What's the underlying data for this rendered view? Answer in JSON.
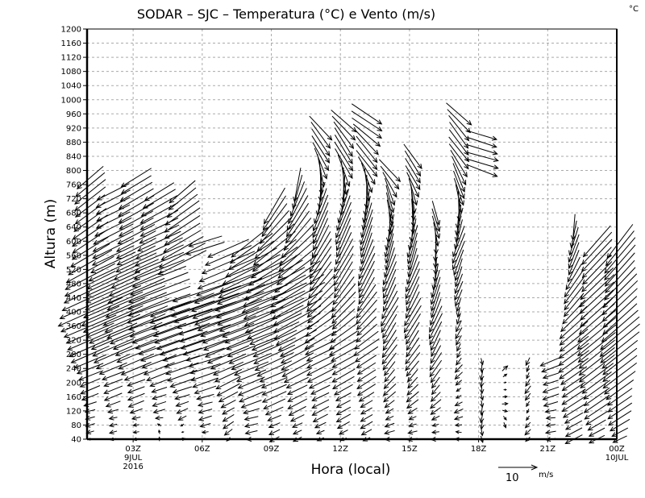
{
  "chart_data": {
    "type": "vector",
    "title": "SODAR – SJC – Temperatura (°C) e Vento (m/s)",
    "corner_label": "°C",
    "xlabel": "Hora (local)",
    "ylabel": "Altura (m)",
    "ylim": [
      40,
      1200
    ],
    "y_ticks": [
      40,
      80,
      120,
      160,
      200,
      240,
      280,
      320,
      360,
      400,
      440,
      480,
      520,
      560,
      600,
      640,
      680,
      720,
      760,
      800,
      840,
      880,
      920,
      960,
      1000,
      1040,
      1080,
      1120,
      1160,
      1200
    ],
    "xlim_hours": [
      1,
      24
    ],
    "x_ticks": [
      {
        "hour": 3,
        "label": "03Z",
        "sub1": "9JUL",
        "sub2": "2016"
      },
      {
        "hour": 6,
        "label": "06Z"
      },
      {
        "hour": 9,
        "label": "09Z"
      },
      {
        "hour": 12,
        "label": "12Z"
      },
      {
        "hour": 15,
        "label": "15Z"
      },
      {
        "hour": 18,
        "label": "18Z"
      },
      {
        "hour": 21,
        "label": "21Z"
      },
      {
        "hour": 24,
        "label": "00Z",
        "sub1": "10JUL"
      }
    ],
    "grid": true,
    "level_step_m": 20,
    "reference_vector": {
      "value": 10,
      "label": "10",
      "unit": "m/s"
    },
    "columns": [
      {
        "hour": 1,
        "segments": [
          [
            40,
            780
          ]
        ],
        "wind": [
          [
            40,
            -1,
            0
          ],
          [
            200,
            -5,
            -2
          ],
          [
            400,
            -16,
            -7
          ],
          [
            600,
            -9,
            -6
          ],
          [
            780,
            -7,
            -6
          ]
        ]
      },
      {
        "hour": 2,
        "segments": [
          [
            40,
            740
          ]
        ],
        "wind": [
          [
            40,
            -1,
            0
          ],
          [
            200,
            -5,
            -2
          ],
          [
            400,
            -16,
            -7
          ],
          [
            600,
            -10,
            -5
          ],
          [
            740,
            -8,
            -4
          ]
        ]
      },
      {
        "hour": 3,
        "segments": [
          [
            40,
            780
          ]
        ],
        "wind": [
          [
            40,
            -1,
            0
          ],
          [
            200,
            -5,
            -2
          ],
          [
            400,
            -17,
            -7
          ],
          [
            560,
            -10,
            -5
          ],
          [
            780,
            -8,
            -5
          ]
        ]
      },
      {
        "hour": 4,
        "segments": [
          [
            40,
            740
          ]
        ],
        "wind": [
          [
            40,
            0,
            1
          ],
          [
            200,
            -5,
            -2
          ],
          [
            400,
            -17,
            -6
          ],
          [
            600,
            -11,
            -5
          ],
          [
            740,
            -8,
            -5
          ]
        ]
      },
      {
        "hour": 5,
        "segments": [
          [
            40,
            420
          ],
          [
            540,
            740
          ]
        ],
        "wind": [
          [
            40,
            1,
            0
          ],
          [
            200,
            -6,
            -2
          ],
          [
            400,
            -17,
            -6
          ],
          [
            600,
            -10,
            -6
          ],
          [
            740,
            -7,
            -6
          ]
        ]
      },
      {
        "hour": 6,
        "segments": [
          [
            40,
            460
          ],
          [
            580,
            600
          ]
        ],
        "wind": [
          [
            40,
            -1,
            0
          ],
          [
            200,
            -6,
            -2
          ],
          [
            440,
            -18,
            -6
          ],
          [
            600,
            -9,
            -3
          ]
        ]
      },
      {
        "hour": 7,
        "segments": [
          [
            40,
            580
          ]
        ],
        "wind": [
          [
            40,
            -1,
            -1
          ],
          [
            200,
            -6,
            -3
          ],
          [
            440,
            -19,
            -7
          ],
          [
            580,
            -11,
            -5
          ]
        ]
      },
      {
        "hour": 8,
        "segments": [
          [
            40,
            600
          ]
        ],
        "wind": [
          [
            40,
            -2,
            0
          ],
          [
            200,
            -7,
            -3
          ],
          [
            440,
            -19,
            -7
          ],
          [
            600,
            -10,
            -8
          ]
        ]
      },
      {
        "hour": 9,
        "segments": [
          [
            40,
            700
          ]
        ],
        "wind": [
          [
            40,
            -2,
            -1
          ],
          [
            200,
            -7,
            -3
          ],
          [
            440,
            -17,
            -8
          ],
          [
            700,
            -5,
            -9
          ]
        ]
      },
      {
        "hour": 10,
        "segments": [
          [
            40,
            760
          ]
        ],
        "wind": [
          [
            40,
            -2,
            -1
          ],
          [
            200,
            -6,
            -3
          ],
          [
            440,
            -14,
            -8
          ],
          [
            760,
            -2,
            -9
          ]
        ]
      },
      {
        "hour": 11,
        "segments": [
          [
            40,
            920
          ]
        ],
        "wind": [
          [
            40,
            -2,
            -1
          ],
          [
            300,
            -8,
            -4
          ],
          [
            500,
            -6,
            -8
          ],
          [
            700,
            -3,
            -9
          ],
          [
            820,
            3,
            -8
          ],
          [
            920,
            6,
            -6
          ]
        ]
      },
      {
        "hour": 12,
        "segments": [
          [
            40,
            940
          ]
        ],
        "wind": [
          [
            40,
            -2,
            -1
          ],
          [
            300,
            -7,
            -4
          ],
          [
            500,
            -5,
            -8
          ],
          [
            700,
            -3,
            -9
          ],
          [
            820,
            4,
            -8
          ],
          [
            940,
            6,
            -6
          ]
        ]
      },
      {
        "hour": 13,
        "segments": [
          [
            40,
            960
          ]
        ],
        "wind": [
          [
            40,
            -2,
            -1
          ],
          [
            300,
            -6,
            -4
          ],
          [
            500,
            -4,
            -8
          ],
          [
            700,
            -2,
            -9
          ],
          [
            820,
            5,
            -7
          ],
          [
            960,
            8,
            -5
          ]
        ]
      },
      {
        "hour": 14,
        "segments": [
          [
            40,
            800
          ]
        ],
        "wind": [
          [
            40,
            -2,
            0
          ],
          [
            400,
            -4,
            -7
          ],
          [
            600,
            -2,
            -8
          ],
          [
            800,
            5,
            -6
          ]
        ]
      },
      {
        "hour": 15,
        "segments": [
          [
            40,
            840
          ]
        ],
        "wind": [
          [
            40,
            -2,
            0
          ],
          [
            400,
            -4,
            -7
          ],
          [
            600,
            -2,
            -8
          ],
          [
            840,
            5,
            -6
          ]
        ]
      },
      {
        "hour": 16,
        "segments": [
          [
            40,
            680
          ]
        ],
        "wind": [
          [
            40,
            -2,
            0
          ],
          [
            400,
            -3,
            -7
          ],
          [
            680,
            2,
            -6
          ]
        ]
      },
      {
        "hour": 17,
        "segments": [
          [
            40,
            960
          ]
        ],
        "wind": [
          [
            40,
            -2,
            0
          ],
          [
            400,
            -1,
            -3
          ],
          [
            600,
            -3,
            -8
          ],
          [
            800,
            4,
            -7
          ],
          [
            960,
            6,
            -6
          ]
        ]
      },
      {
        "hour": 18,
        "segments": [
          [
            40,
            260
          ],
          [
            800,
            900
          ]
        ],
        "wind": [
          [
            40,
            0,
            -2
          ],
          [
            260,
            0,
            -2
          ],
          [
            800,
            8,
            -3
          ],
          [
            900,
            8,
            -2
          ]
        ]
      },
      {
        "hour": 19,
        "segments": [
          [
            80,
            240
          ]
        ],
        "wind": [
          [
            80,
            1,
            -1
          ],
          [
            240,
            1,
            1
          ]
        ]
      },
      {
        "hour": 20,
        "segments": [
          [
            40,
            260
          ]
        ],
        "wind": [
          [
            40,
            -1,
            -1
          ],
          [
            260,
            -1,
            -2
          ]
        ]
      },
      {
        "hour": 21,
        "segments": [
          [
            40,
            260
          ]
        ],
        "wind": [
          [
            40,
            -2,
            0
          ],
          [
            260,
            -5,
            -2
          ]
        ]
      },
      {
        "hour": 22,
        "segments": [
          [
            40,
            640
          ]
        ],
        "wind": [
          [
            40,
            -4,
            -2
          ],
          [
            300,
            -8,
            -6
          ],
          [
            640,
            -1,
            -7
          ]
        ]
      },
      {
        "hour": 23,
        "segments": [
          [
            40,
            600
          ]
        ],
        "wind": [
          [
            40,
            -4,
            -2
          ],
          [
            300,
            -10,
            -8
          ],
          [
            600,
            -7,
            -8
          ]
        ]
      },
      {
        "hour": 24,
        "segments": [
          [
            40,
            600
          ]
        ],
        "wind": [
          [
            40,
            -4,
            -2
          ],
          [
            300,
            -10,
            -8
          ],
          [
            600,
            -7,
            -9
          ]
        ]
      }
    ]
  }
}
